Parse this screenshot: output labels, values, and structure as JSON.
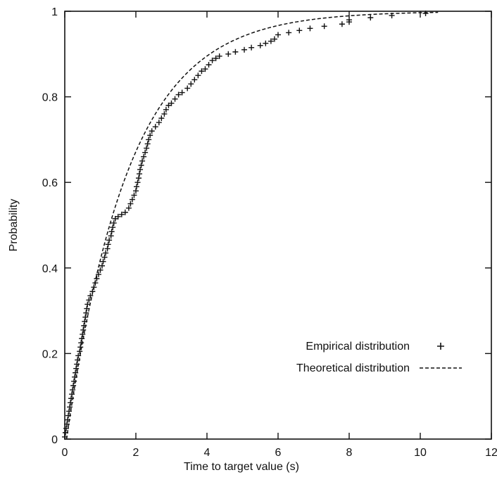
{
  "chart_data": {
    "type": "scatter",
    "title": "",
    "xlabel": "Time to target value (s)",
    "ylabel": "Probability",
    "xlim": [
      0,
      12
    ],
    "ylim": [
      0,
      1
    ],
    "xticks": [
      "0",
      "2",
      "4",
      "6",
      "8",
      "10",
      "12"
    ],
    "yticks": [
      "0",
      "0.2",
      "0.4",
      "0.6",
      "0.8",
      "1"
    ],
    "grid": false,
    "legend_placement": "bottom-right",
    "series": [
      {
        "name": "Empirical distribution",
        "style": "plus",
        "points": [
          [
            0.0,
            0.005
          ],
          [
            0.02,
            0.015
          ],
          [
            0.04,
            0.025
          ],
          [
            0.06,
            0.035
          ],
          [
            0.08,
            0.045
          ],
          [
            0.1,
            0.055
          ],
          [
            0.12,
            0.065
          ],
          [
            0.14,
            0.075
          ],
          [
            0.16,
            0.085
          ],
          [
            0.18,
            0.095
          ],
          [
            0.2,
            0.105
          ],
          [
            0.22,
            0.115
          ],
          [
            0.24,
            0.125
          ],
          [
            0.26,
            0.135
          ],
          [
            0.28,
            0.145
          ],
          [
            0.3,
            0.155
          ],
          [
            0.32,
            0.165
          ],
          [
            0.34,
            0.175
          ],
          [
            0.36,
            0.185
          ],
          [
            0.38,
            0.195
          ],
          [
            0.42,
            0.205
          ],
          [
            0.44,
            0.215
          ],
          [
            0.46,
            0.225
          ],
          [
            0.48,
            0.235
          ],
          [
            0.5,
            0.245
          ],
          [
            0.52,
            0.255
          ],
          [
            0.54,
            0.265
          ],
          [
            0.56,
            0.275
          ],
          [
            0.58,
            0.285
          ],
          [
            0.6,
            0.295
          ],
          [
            0.62,
            0.305
          ],
          [
            0.64,
            0.315
          ],
          [
            0.68,
            0.325
          ],
          [
            0.72,
            0.335
          ],
          [
            0.78,
            0.345
          ],
          [
            0.82,
            0.355
          ],
          [
            0.86,
            0.365
          ],
          [
            0.9,
            0.375
          ],
          [
            0.95,
            0.385
          ],
          [
            1.0,
            0.395
          ],
          [
            1.05,
            0.405
          ],
          [
            1.08,
            0.415
          ],
          [
            1.12,
            0.425
          ],
          [
            1.15,
            0.435
          ],
          [
            1.2,
            0.445
          ],
          [
            1.22,
            0.455
          ],
          [
            1.25,
            0.465
          ],
          [
            1.3,
            0.475
          ],
          [
            1.32,
            0.485
          ],
          [
            1.35,
            0.495
          ],
          [
            1.38,
            0.505
          ],
          [
            1.42,
            0.515
          ],
          [
            1.5,
            0.52
          ],
          [
            1.6,
            0.525
          ],
          [
            1.7,
            0.53
          ],
          [
            1.8,
            0.54
          ],
          [
            1.85,
            0.55
          ],
          [
            1.9,
            0.56
          ],
          [
            1.95,
            0.57
          ],
          [
            2.0,
            0.58
          ],
          [
            2.02,
            0.59
          ],
          [
            2.05,
            0.6
          ],
          [
            2.08,
            0.61
          ],
          [
            2.1,
            0.62
          ],
          [
            2.12,
            0.63
          ],
          [
            2.15,
            0.64
          ],
          [
            2.18,
            0.65
          ],
          [
            2.22,
            0.66
          ],
          [
            2.26,
            0.67
          ],
          [
            2.3,
            0.68
          ],
          [
            2.33,
            0.69
          ],
          [
            2.36,
            0.7
          ],
          [
            2.4,
            0.71
          ],
          [
            2.45,
            0.72
          ],
          [
            2.55,
            0.73
          ],
          [
            2.65,
            0.74
          ],
          [
            2.72,
            0.75
          ],
          [
            2.8,
            0.76
          ],
          [
            2.85,
            0.77
          ],
          [
            2.92,
            0.78
          ],
          [
            3.0,
            0.785
          ],
          [
            3.1,
            0.795
          ],
          [
            3.2,
            0.805
          ],
          [
            3.3,
            0.81
          ],
          [
            3.45,
            0.82
          ],
          [
            3.55,
            0.83
          ],
          [
            3.65,
            0.84
          ],
          [
            3.75,
            0.85
          ],
          [
            3.85,
            0.86
          ],
          [
            3.95,
            0.865
          ],
          [
            4.05,
            0.875
          ],
          [
            4.15,
            0.885
          ],
          [
            4.25,
            0.89
          ],
          [
            4.35,
            0.895
          ],
          [
            4.6,
            0.9
          ],
          [
            4.8,
            0.905
          ],
          [
            5.05,
            0.91
          ],
          [
            5.25,
            0.915
          ],
          [
            5.5,
            0.92
          ],
          [
            5.65,
            0.925
          ],
          [
            5.8,
            0.93
          ],
          [
            5.9,
            0.935
          ],
          [
            6.0,
            0.945
          ],
          [
            6.3,
            0.95
          ],
          [
            6.6,
            0.955
          ],
          [
            6.9,
            0.96
          ],
          [
            7.3,
            0.965
          ],
          [
            7.8,
            0.97
          ],
          [
            8.0,
            0.975
          ],
          [
            8.0,
            0.98
          ],
          [
            8.6,
            0.985
          ],
          [
            9.2,
            0.99
          ],
          [
            10.15,
            0.995
          ]
        ]
      },
      {
        "name": "Theoretical distribution",
        "style": "dashed-line",
        "function": "1 - exp(-(x - 0.05) / 1.75)",
        "x_range": [
          0.05,
          10.5
        ]
      }
    ]
  }
}
